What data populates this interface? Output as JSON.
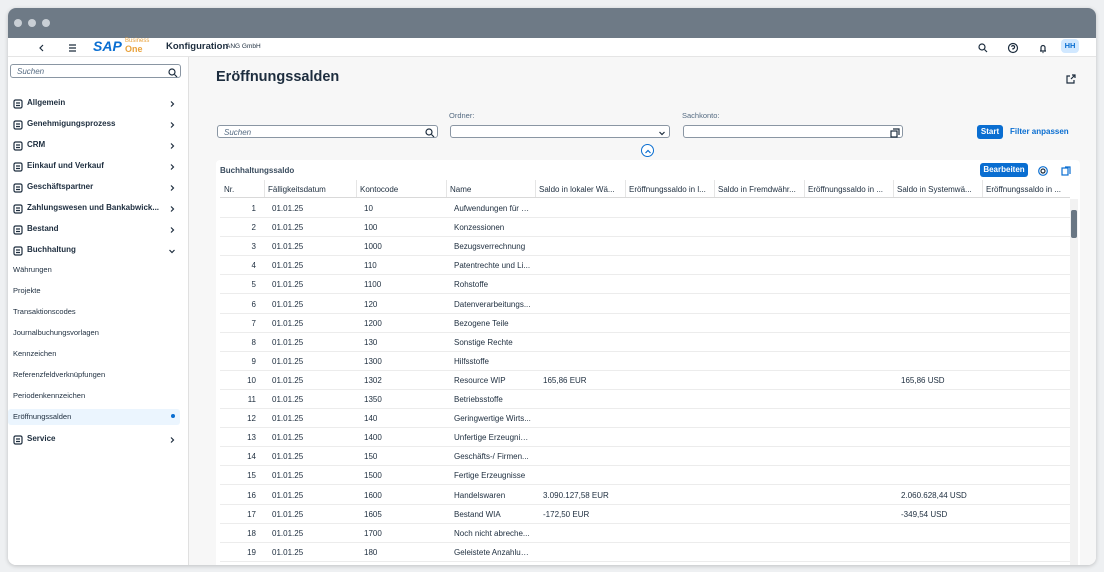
{
  "header": {
    "logo": "SAP",
    "logo_line1": "Business",
    "logo_line2": "One",
    "app": "Konfiguration",
    "company": "ANG GmbH",
    "avatar": "HH"
  },
  "sidebar": {
    "search_placeholder": "Suchen",
    "groups": [
      {
        "label": "Allgemein"
      },
      {
        "label": "Genehmigungsprozess"
      },
      {
        "label": "CRM"
      },
      {
        "label": "Einkauf und Verkauf"
      },
      {
        "label": "Geschäftspartner"
      },
      {
        "label": "Zahlungswesen und Bankabwick..."
      },
      {
        "label": "Bestand"
      },
      {
        "label": "Buchhaltung",
        "expanded": true,
        "children": [
          {
            "label": "Währungen"
          },
          {
            "label": "Projekte"
          },
          {
            "label": "Transaktionscodes"
          },
          {
            "label": "Journalbuchungsvorlagen"
          },
          {
            "label": "Kennzeichen"
          },
          {
            "label": "Referenzfeldverknüpfungen"
          },
          {
            "label": "Periodenkennzeichen"
          },
          {
            "label": "Eröffnungssalden",
            "selected": true
          }
        ]
      },
      {
        "label": "Service"
      }
    ]
  },
  "page": {
    "title": "Eröffnungssalden",
    "filters": {
      "search_placeholder": "Suchen",
      "folder_label": "Ordner:",
      "account_label": "Sachkonto:",
      "start": "Start",
      "adapt": "Filter anpassen"
    },
    "table": {
      "title": "Buchhaltungssaldo",
      "edit": "Bearbeiten",
      "columns": [
        "Nr.",
        "Fälligkeitsdatum",
        "Kontocode",
        "Name",
        "Saldo in lokaler Wä...",
        "Eröffnungssaldo in l...",
        "Saldo in Fremdwähr...",
        "Eröffnungssaldo in ...",
        "Saldo in Systemwä...",
        "Eröffnungssaldo in ..."
      ],
      "rows": [
        [
          "1",
          "01.01.25",
          "10",
          "Aufwendungen für d...",
          null,
          null,
          null,
          null,
          null,
          null
        ],
        [
          "2",
          "01.01.25",
          "100",
          "Konzessionen",
          null,
          null,
          null,
          null,
          null,
          null
        ],
        [
          "3",
          "01.01.25",
          "1000",
          "Bezugsverrechnung",
          null,
          null,
          null,
          null,
          null,
          null
        ],
        [
          "4",
          "01.01.25",
          "110",
          "Patentrechte und Li...",
          null,
          null,
          null,
          null,
          null,
          null
        ],
        [
          "5",
          "01.01.25",
          "1100",
          "Rohstoffe",
          null,
          null,
          null,
          null,
          null,
          null
        ],
        [
          "6",
          "01.01.25",
          "120",
          "Datenverarbeitungs...",
          null,
          null,
          null,
          null,
          null,
          null
        ],
        [
          "7",
          "01.01.25",
          "1200",
          "Bezogene Teile",
          null,
          null,
          null,
          null,
          null,
          null
        ],
        [
          "8",
          "01.01.25",
          "130",
          "Sonstige Rechte",
          null,
          null,
          null,
          null,
          null,
          null
        ],
        [
          "9",
          "01.01.25",
          "1300",
          "Hilfsstoffe",
          null,
          null,
          null,
          null,
          null,
          null
        ],
        [
          "10",
          "01.01.25",
          "1302",
          "Resource WIP",
          "165,86 EUR",
          null,
          null,
          null,
          "165,86 USD",
          null
        ],
        [
          "11",
          "01.01.25",
          "1350",
          "Betriebsstoffe",
          null,
          null,
          null,
          null,
          null,
          null
        ],
        [
          "12",
          "01.01.25",
          "140",
          "Geringwertige Wirts...",
          null,
          null,
          null,
          null,
          null,
          null
        ],
        [
          "13",
          "01.01.25",
          "1400",
          "Unfertige Erzeugnisse",
          null,
          null,
          null,
          null,
          null,
          null
        ],
        [
          "14",
          "01.01.25",
          "150",
          "Geschäfts-/ Firmen...",
          null,
          null,
          null,
          null,
          null,
          null
        ],
        [
          "15",
          "01.01.25",
          "1500",
          "Fertige Erzeugnisse",
          null,
          null,
          null,
          null,
          null,
          null
        ],
        [
          "16",
          "01.01.25",
          "1600",
          "Handelswaren",
          "3.090.127,58 EUR",
          null,
          null,
          null,
          "2.060.628,44 USD",
          null
        ],
        [
          "17",
          "01.01.25",
          "1605",
          "Bestand WIA",
          "-172,50 EUR",
          null,
          null,
          null,
          "-349,54 USD",
          null
        ],
        [
          "18",
          "01.01.25",
          "1700",
          "Noch nicht abreche...",
          null,
          null,
          null,
          null,
          null,
          null
        ],
        [
          "19",
          "01.01.25",
          "180",
          "Geleistete Anzahlun...",
          null,
          null,
          null,
          null,
          null,
          null
        ]
      ]
    }
  }
}
